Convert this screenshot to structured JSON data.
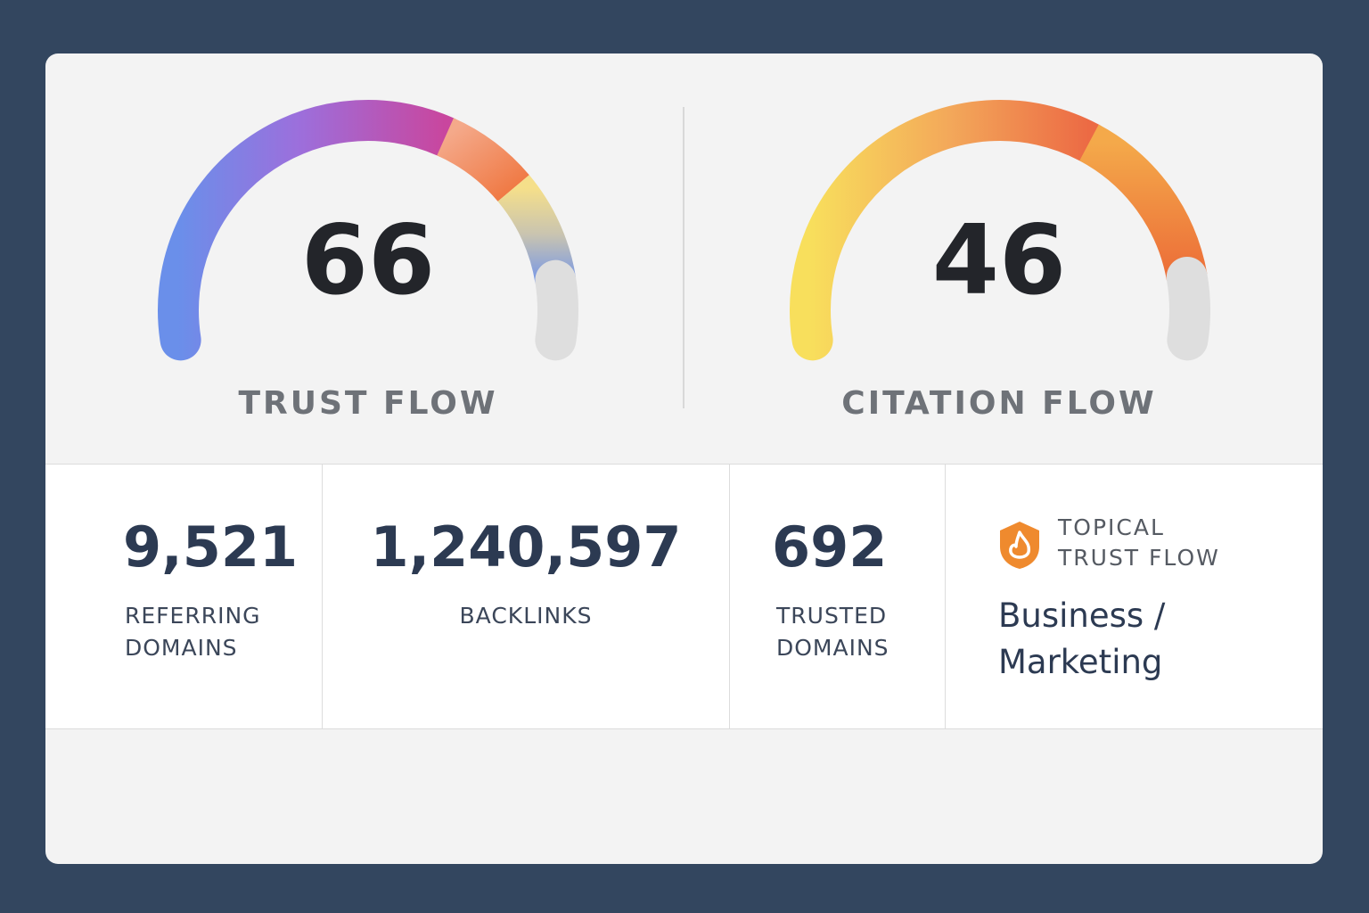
{
  "gauges": [
    {
      "value": "66",
      "label": "TRUST FLOW"
    },
    {
      "value": "46",
      "label": "CITATION FLOW"
    }
  ],
  "stats": [
    {
      "value": "9,521",
      "label": "REFERRING DOMAINS"
    },
    {
      "value": "1,240,597",
      "label": "BACKLINKS"
    },
    {
      "value": "692",
      "label": "TRUSTED DOMAINS"
    }
  ],
  "topical": {
    "title": "TOPICAL TRUST FLOW",
    "value": "Business / Marketing"
  }
}
